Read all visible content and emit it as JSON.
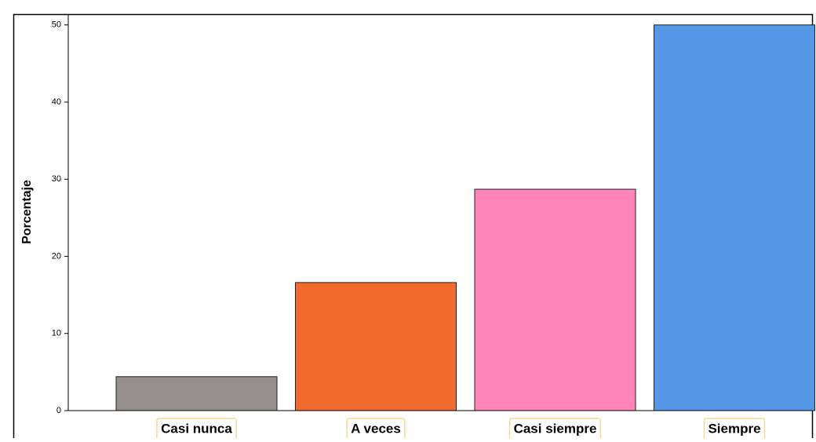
{
  "chart_data": {
    "type": "bar",
    "y_label": "Porcentaje",
    "categories": [
      "Casi nunca",
      "A veces",
      "Casi siempre",
      "Siempre"
    ],
    "values": [
      4.4,
      16.6,
      28.7,
      50.0
    ],
    "colors": [
      "#948f8d",
      "#f26a2e",
      "#ff85b8",
      "#5596e6"
    ],
    "ylim": [
      0,
      51.4
    ],
    "yticks": [
      0,
      10,
      20,
      30,
      40,
      50
    ],
    "grid": false
  }
}
